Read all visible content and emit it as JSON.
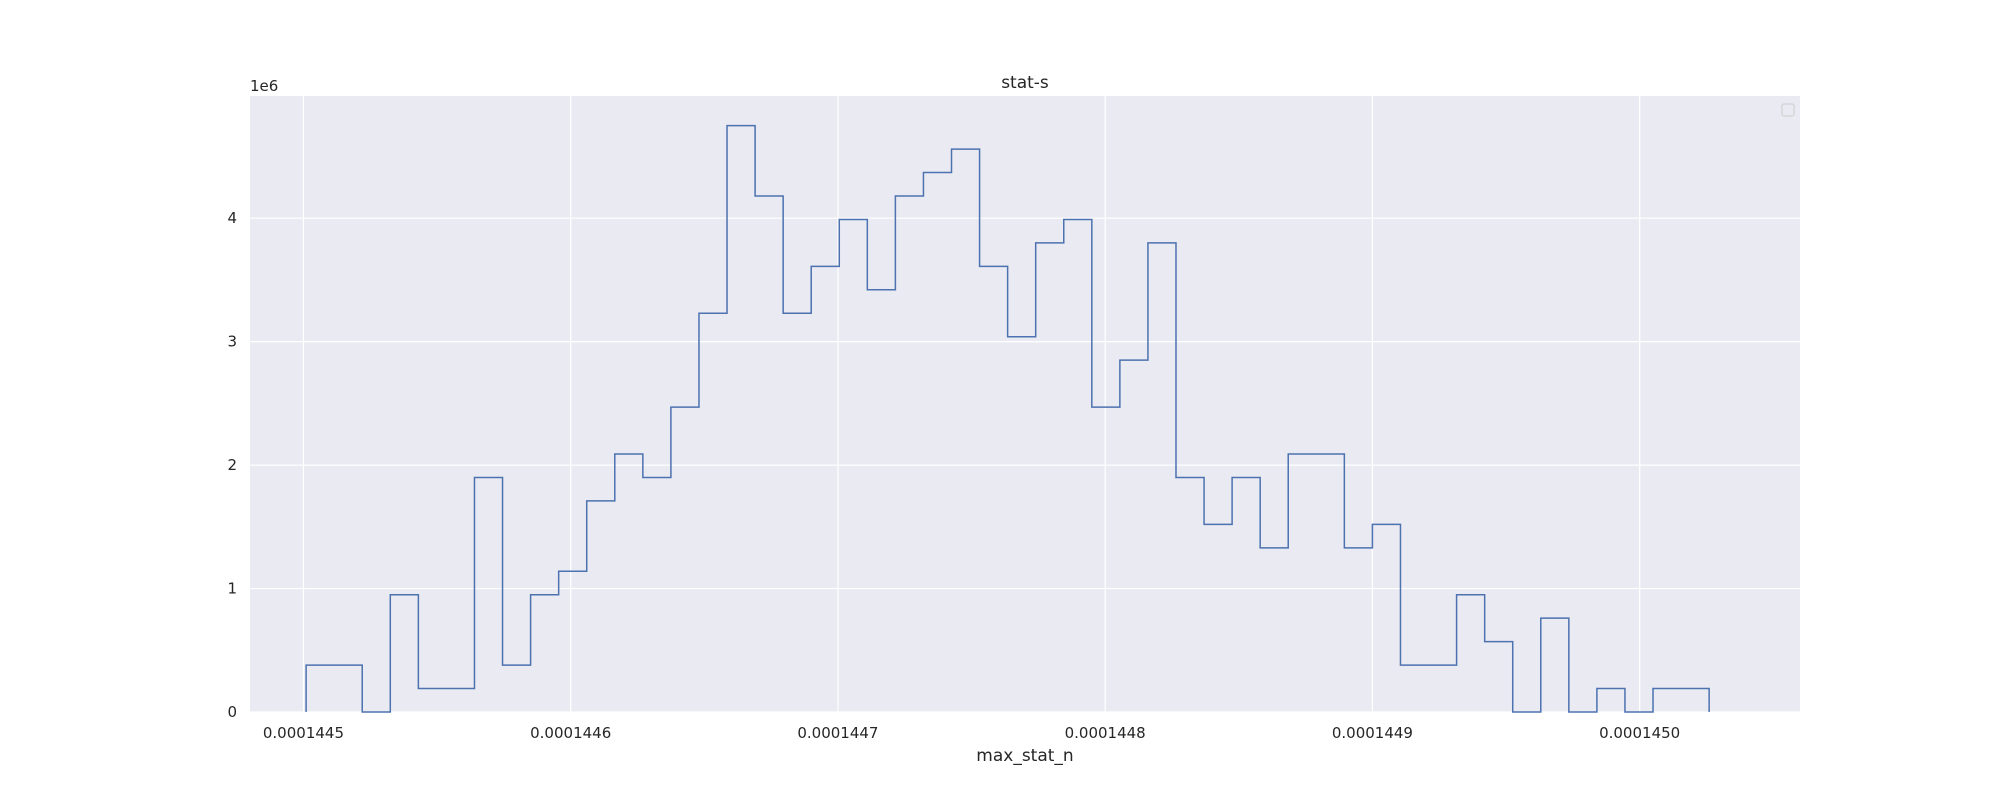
{
  "chart_data": {
    "type": "histogram-step",
    "title": "stat-s",
    "xlabel": "max_stat_n",
    "ylabel": "",
    "y_offset_text": "1e6",
    "xlim": [
      0.00014448,
      0.00014506
    ],
    "ylim": [
      0,
      4990000
    ],
    "x_ticks": [
      {
        "value": 0.0001445,
        "label": "0.0001445"
      },
      {
        "value": 0.0001446,
        "label": "0.0001446"
      },
      {
        "value": 0.0001447,
        "label": "0.0001447"
      },
      {
        "value": 0.0001448,
        "label": "0.0001448"
      },
      {
        "value": 0.0001449,
        "label": "0.0001449"
      },
      {
        "value": 0.000145,
        "label": "0.0001450"
      }
    ],
    "y_ticks": [
      {
        "value": 0,
        "label": "0"
      },
      {
        "value": 1000000,
        "label": "1"
      },
      {
        "value": 2000000,
        "label": "2"
      },
      {
        "value": 3000000,
        "label": "3"
      },
      {
        "value": 4000000,
        "label": "4"
      }
    ],
    "bin_start": 0.000144501,
    "bin_width": 1.05e-08,
    "bin_heights": [
      380000,
      380000,
      0,
      950000,
      190000,
      190000,
      1900000,
      380000,
      950000,
      1140000,
      1710000,
      2090000,
      1900000,
      2470000,
      3230000,
      4750000,
      4180000,
      3230000,
      3610000,
      3990000,
      3420000,
      4180000,
      4370000,
      4560000,
      3610000,
      3040000,
      3800000,
      3990000,
      2470000,
      2850000,
      3800000,
      1900000,
      1520000,
      1900000,
      1330000,
      2090000,
      2090000,
      1330000,
      1520000,
      380000,
      380000,
      950000,
      570000,
      0,
      760000,
      0,
      190000,
      0,
      190000,
      190000
    ],
    "series": [
      {
        "name": "",
        "color": "#4c72b0"
      }
    ],
    "grid": true,
    "legend": "top-right",
    "colors": {
      "plot_background": "#eaeaf2",
      "grid": "#ffffff",
      "line": "#4c72b0"
    }
  }
}
